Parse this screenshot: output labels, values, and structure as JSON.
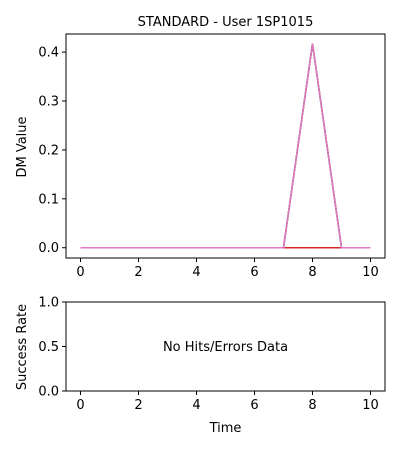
{
  "chart_data": [
    {
      "type": "line",
      "title": "STANDARD - User 1SP1015",
      "xlabel": "",
      "ylabel": "DM Value",
      "xlim": [
        -0.5,
        10.5
      ],
      "ylim": [
        -0.021,
        0.437
      ],
      "xticks": [
        0,
        2,
        4,
        6,
        8,
        10
      ],
      "yticks": [
        0.0,
        0.1,
        0.2,
        0.3,
        0.4
      ],
      "xtick_labels": [
        "0",
        "2",
        "4",
        "6",
        "8",
        "10"
      ],
      "ytick_labels": [
        "0.0",
        "0.1",
        "0.2",
        "0.3",
        "0.4"
      ],
      "grid": false,
      "series": [
        {
          "color": "#1f77b4",
          "x": [
            0,
            1,
            2,
            3,
            4,
            5,
            6,
            7,
            8,
            9,
            10
          ],
          "y": [
            0,
            0,
            0,
            0,
            0,
            0,
            0,
            0,
            0.417,
            0,
            0
          ]
        },
        {
          "color": "#ff7f0e",
          "x": [
            0,
            1,
            2,
            3,
            4,
            5,
            6,
            7,
            8,
            9,
            10
          ],
          "y": [
            0,
            0,
            0,
            0,
            0,
            0,
            0,
            0,
            0.417,
            0,
            0
          ]
        },
        {
          "color": "#2ca02c",
          "x": [
            0,
            1,
            2,
            3,
            4,
            5,
            6,
            7,
            8,
            9,
            10
          ],
          "y": [
            0,
            0,
            0,
            0,
            0,
            0,
            0,
            0,
            0.417,
            0,
            0
          ]
        },
        {
          "color": "#9467bd",
          "x": [
            0,
            1,
            2,
            3,
            4,
            5,
            6,
            7,
            8,
            9,
            10
          ],
          "y": [
            0,
            0,
            0,
            0,
            0,
            0,
            0,
            0,
            0.417,
            0,
            0
          ]
        },
        {
          "color": "#d62728",
          "x": [
            0,
            1,
            2,
            3,
            4,
            5,
            6,
            7,
            8,
            9,
            10
          ],
          "y": [
            0,
            0,
            0,
            0,
            0,
            0,
            0,
            0,
            0,
            0,
            0
          ]
        },
        {
          "color": "#e377c2",
          "x": [
            0,
            1,
            2,
            3,
            4,
            5,
            6,
            7,
            8,
            9,
            10
          ],
          "y": [
            0,
            0,
            0,
            0,
            0,
            0,
            0,
            0,
            0.417,
            0,
            0
          ]
        }
      ]
    },
    {
      "type": "line",
      "title": "",
      "xlabel": "Time",
      "ylabel": "Success Rate",
      "xlim": [
        -0.5,
        10.5
      ],
      "ylim": [
        0.0,
        1.0
      ],
      "xticks": [
        0,
        2,
        4,
        6,
        8,
        10
      ],
      "yticks": [
        0.0,
        0.5,
        1.0
      ],
      "xtick_labels": [
        "0",
        "2",
        "4",
        "6",
        "8",
        "10"
      ],
      "ytick_labels": [
        "0.0",
        "0.5",
        "1.0"
      ],
      "grid": false,
      "annotation": "No Hits/Errors Data",
      "series": []
    }
  ]
}
